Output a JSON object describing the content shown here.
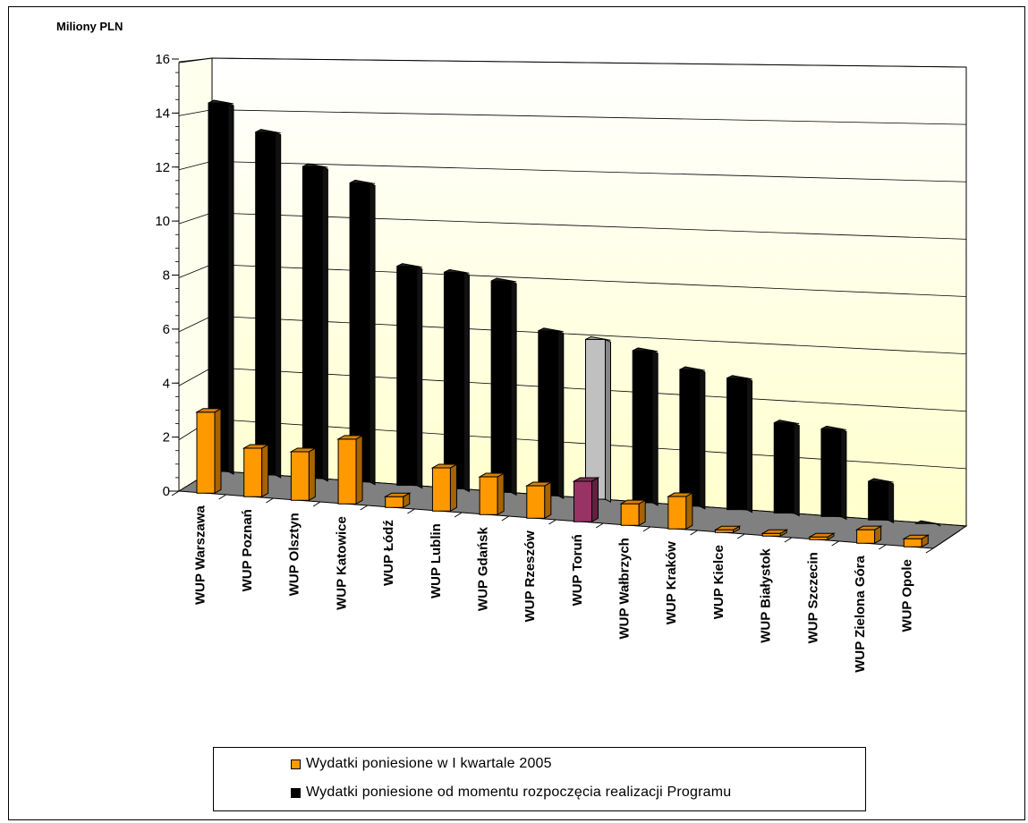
{
  "chart_data": {
    "type": "bar",
    "title": "",
    "ylabel": "Miliony PLN",
    "xlabel": "",
    "ylim": [
      0,
      16
    ],
    "yticks": [
      0,
      2,
      4,
      6,
      8,
      10,
      12,
      14,
      16
    ],
    "grid": true,
    "legend_position": "bottom",
    "categories": [
      "WUP Warszawa",
      "WUP Poznań",
      "WUP Olsztyn",
      "WUP Katowice",
      "WUP Łódź",
      "WUP Lublin",
      "WUP Gdańsk",
      "WUP Rzeszów",
      "WUP Toruń",
      "WUP Wałbrzych",
      "WUP Kraków",
      "WUP Kielce",
      "WUP Białystok",
      "WUP Szczecin",
      "WUP Zielona Góra",
      "WUP Opole"
    ],
    "series": [
      {
        "name": "Wydatki poniesione w I kwartale 2005",
        "color": "#ff9900",
        "values": [
          3.0,
          1.8,
          1.8,
          2.4,
          0.4,
          1.6,
          1.4,
          1.2,
          1.5,
          0.8,
          1.2,
          0.1,
          0.1,
          0.1,
          0.5,
          0.3
        ]
      },
      {
        "name": "Wydatki poniesione od momentu rozpoczęcia realizacji Programu",
        "color": "#000000",
        "values": [
          14.3,
          13.3,
          12.1,
          11.6,
          8.5,
          8.4,
          8.2,
          6.4,
          6.2,
          5.9,
          5.3,
          5.1,
          3.5,
          3.4,
          1.5,
          0.0
        ]
      }
    ],
    "highlight": {
      "category": "WUP Toruń",
      "series0_color": "#993366",
      "series1_color": "#c0c0c0"
    }
  },
  "legend": {
    "items": [
      {
        "label": "Wydatki poniesione w I kwartale 2005",
        "color": "#ff9900"
      },
      {
        "label": "Wydatki poniesione od momentu rozpoczęcia realizacji Programu",
        "color": "#000000"
      }
    ]
  }
}
